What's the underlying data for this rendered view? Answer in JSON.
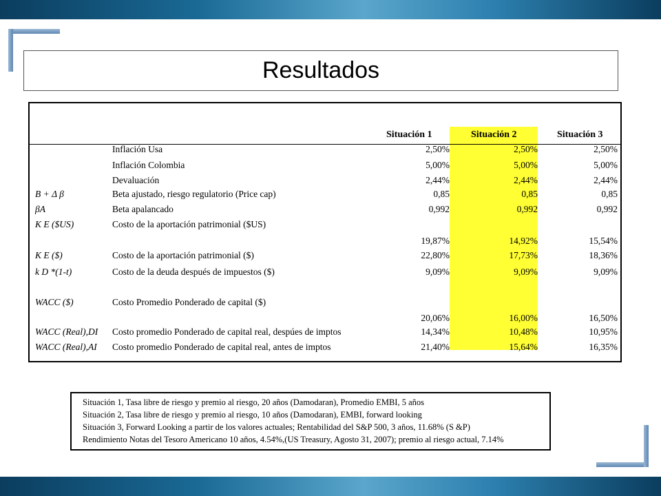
{
  "title": "Resultados",
  "table": {
    "headers": [
      "Situación 1",
      "Situación 2",
      "Situación 3"
    ],
    "rows": [
      {
        "symbol": "",
        "label": "Inflación Usa",
        "values": [
          "2,50%",
          "2,50%",
          "2,50%"
        ]
      },
      {
        "symbol": "",
        "label": "Inflación Colombia",
        "values": [
          "5,00%",
          "5,00%",
          "5,00%"
        ]
      },
      {
        "symbol": "",
        "label": "Devaluación",
        "values": [
          "2,44%",
          "2,44%",
          "2,44%"
        ]
      },
      {
        "symbol": "B + Δ β",
        "label": "Beta ajustado, riesgo regulatorio (Price cap)",
        "values": [
          "0,85",
          "0,85",
          "0,85"
        ]
      },
      {
        "symbol": "βA",
        "label": "Beta apalancado",
        "values": [
          "0,992",
          "0,992",
          "0,992"
        ]
      },
      {
        "symbol": "K E ($US)",
        "label": "Costo de la aportación patrimonial ($US)",
        "values": [
          "",
          "",
          ""
        ]
      },
      {
        "symbol": "",
        "label": "",
        "values": [
          "19,87%",
          "14,92%",
          "15,54%"
        ]
      },
      {
        "symbol": "K E ($)",
        "label": "Costo de la aportación patrimonial ($)",
        "values": [
          "22,80%",
          "17,73%",
          "18,36%"
        ]
      },
      {
        "symbol": "k D *(1-t)",
        "label": "Costo de la deuda después de impuestos ($)",
        "values": [
          "9,09%",
          "9,09%",
          "9,09%"
        ]
      },
      {
        "symbol": "WACC ($)",
        "label": "Costo Promedio Ponderado de capital ($)",
        "values": [
          "",
          "",
          ""
        ]
      },
      {
        "symbol": "",
        "label": "",
        "values": [
          "20,06%",
          "16,00%",
          "16,50%"
        ]
      },
      {
        "symbol": "WACC (Real),DI",
        "label": "Costo promedio Ponderado de capital real, despúes de imptos",
        "values": [
          "14,34%",
          "10,48%",
          "10,95%"
        ]
      },
      {
        "symbol": "WACC (Real),AI",
        "label": "Costo promedio Ponderado de capital real, antes de imptos",
        "values": [
          "21,40%",
          "15,64%",
          "16,35%"
        ]
      }
    ]
  },
  "notes": [
    "Situación 1, Tasa libre de riesgo y premio al riesgo, 20 años (Damodaran), Promedio EMBI, 5 años",
    "Situación 2, Tasa libre de riesgo y premio al riesgo, 10 años (Damodaran), EMBI,  forward looking",
    "Situación 3, Forward Looking a partir de los valores actuales; Rentabilidad del S&P 500, 3 años, 11.68% (S &P)",
    "Rendimiento Notas del Tesoro Americano 10 años, 4.54%,(US Treasury, Agosto 31, 2007); premio al riesgo actual, 7.14%"
  ],
  "colors": {
    "highlight": "#ffff33",
    "bar": "#1a6a96"
  }
}
